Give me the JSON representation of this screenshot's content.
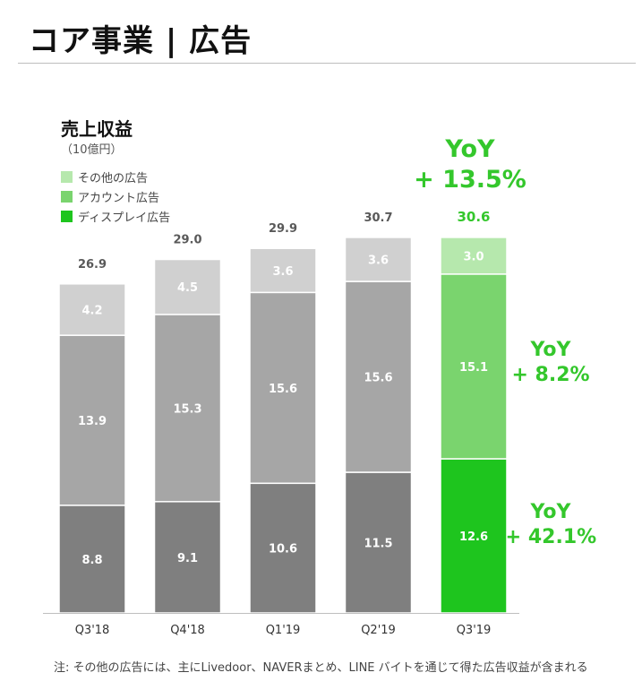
{
  "header": {
    "title": "コア事業 | 広告"
  },
  "chart_data": {
    "type": "bar",
    "stacked": true,
    "title": "売上収益",
    "unit": "（10億円）",
    "categories": [
      "Q3'18",
      "Q4'18",
      "Q1'19",
      "Q2'19",
      "Q3'19"
    ],
    "totals": [
      "26.9",
      "29.0",
      "29.9",
      "30.7",
      "30.6"
    ],
    "series": [
      {
        "name": "ディスプレイ広告",
        "values": [
          8.8,
          9.1,
          10.6,
          11.5,
          12.6
        ],
        "labels": [
          "8.8",
          "9.1",
          "10.6",
          "11.5",
          "12.6"
        ]
      },
      {
        "name": "アカウント広告",
        "values": [
          13.9,
          15.3,
          15.6,
          15.6,
          15.1
        ],
        "labels": [
          "13.9",
          "15.3",
          "15.6",
          "15.6",
          "15.1"
        ]
      },
      {
        "name": "その他の広告",
        "values": [
          4.2,
          4.5,
          3.6,
          3.6,
          3.0
        ],
        "labels": [
          "4.2",
          "4.5",
          "3.6",
          "3.6",
          "3.0"
        ]
      }
    ],
    "legend_order": [
      "その他の広告",
      "アカウント広告",
      "ディスプレイ広告"
    ],
    "colors": {
      "past": [
        "#7f7f7f",
        "#a6a6a6",
        "#d0d0d0"
      ],
      "highlight": [
        "#1ec51e",
        "#7ad46e",
        "#b6e8ad"
      ],
      "legend": [
        "#b6e8ad",
        "#7ad46e",
        "#1ec51e"
      ]
    },
    "highlight_index": 4,
    "ylim": [
      0,
      31.5
    ],
    "annotations": {
      "total_yoy": [
        "YoY",
        "+ 13.5%"
      ],
      "account_yoy": [
        "YoY",
        "+ 8.2%"
      ],
      "display_yoy": [
        "YoY",
        "+ 42.1%"
      ]
    }
  },
  "footnote": "注: その他の広告には、主にLivedoor、NAVERまとめ、LINE バイトを通じて得た広告収益が含まれる"
}
